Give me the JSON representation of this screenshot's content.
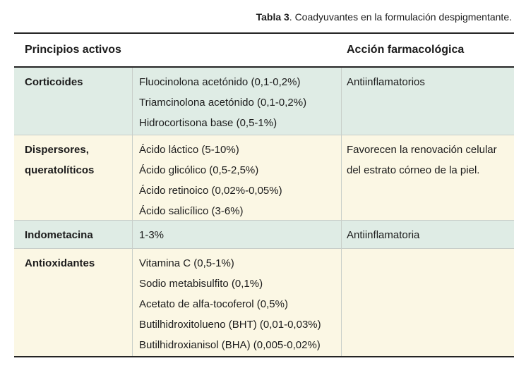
{
  "caption": {
    "label": "Tabla 3",
    "text": ". Coadyuvantes en la formulación despigmentante."
  },
  "table": {
    "headers": [
      "Principios activos",
      "Acción farmacológica"
    ],
    "rows": [
      {
        "category": "Corticoides",
        "actives": [
          "Fluocinolona acetónido (0,1-0,2%)",
          "Triamcinolona acetónido (0,1-0,2%)",
          "Hidrocortisona base (0,5-1%)"
        ],
        "action": "Antiinflamatorios",
        "tint": "green"
      },
      {
        "category": "Dispersores, queratolíticos",
        "actives": [
          "Ácido láctico (5-10%)",
          "Ácido glicólico (0,5-2,5%)",
          "Ácido retinoico (0,02%-0,05%)",
          "Ácido salicílico (3-6%)"
        ],
        "action": "Favorecen la renovación celular del estrato córneo de la piel.",
        "tint": "cream"
      },
      {
        "category": "Indometacina",
        "actives": [
          "1-3%"
        ],
        "action": "Antiinflamatoria",
        "tint": "green"
      },
      {
        "category": "Antioxidantes",
        "actives": [
          "Vitamina C (0,5-1%)",
          "Sodio metabisulfito (0,1%)",
          "Acetato de alfa-tocoferol (0,5%)",
          "Butilhidroxitolueno (BHT) (0,01-0,03%)",
          "Butilhidroxianisol (BHA) (0,005-0,02%)"
        ],
        "action": "",
        "tint": "cream"
      }
    ]
  },
  "colors": {
    "mint": "#dfece5",
    "cream": "#fbf7e4",
    "rule_dark": "#242424",
    "divider": "#c8cec9",
    "text": "#1c1c1c",
    "page_bg": "#ffffff"
  }
}
